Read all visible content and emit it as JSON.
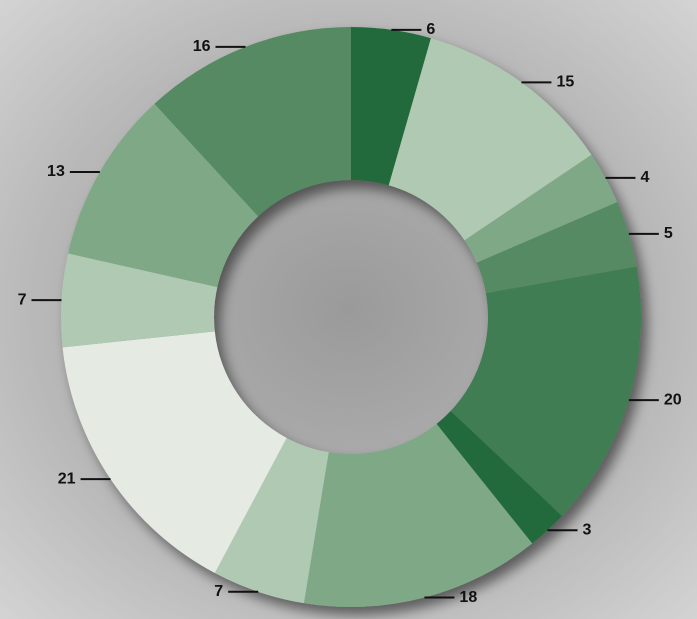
{
  "chart_data": {
    "type": "donut",
    "values": [
      6,
      15,
      4,
      5,
      20,
      3,
      18,
      7,
      21,
      7,
      13,
      16
    ],
    "colors": [
      "#236b3a",
      "#b0c9b3",
      "#7fa886",
      "#558a63",
      "#3f7d52",
      "#236b3a",
      "#7fa886",
      "#b0c9b3",
      "#e5ebe3",
      "#b0c9b3",
      "#7fa886",
      "#558a63"
    ]
  }
}
